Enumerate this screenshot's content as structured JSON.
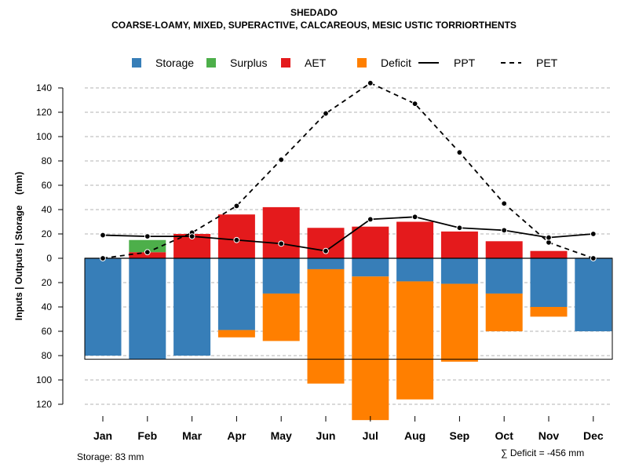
{
  "chart_data": {
    "type": "bar",
    "title": "SHEDADO",
    "subtitle": "COARSE-LOAMY, MIXED, SUPERACTIVE, CALCAREOUS, MESIC USTIC TORRIORTHENTS",
    "ylabel": "Inputs | Outputs | Storage    (mm)",
    "categories": [
      "Jan",
      "Feb",
      "Mar",
      "Apr",
      "May",
      "Jun",
      "Jul",
      "Aug",
      "Sep",
      "Oct",
      "Nov",
      "Dec"
    ],
    "ylim": [
      -120,
      140
    ],
    "yticks": [
      140,
      120,
      100,
      80,
      60,
      40,
      20,
      0,
      -20,
      -40,
      -60,
      -80,
      -100,
      -120
    ],
    "ytick_labels": [
      "140",
      "120",
      "100",
      "80",
      "60",
      "40",
      "20",
      "0",
      "20",
      "40",
      "60",
      "80",
      "100",
      "120"
    ],
    "grid": true,
    "capacity_line": -83,
    "legend": [
      {
        "label": "Storage",
        "kind": "box",
        "color": "#377EB8"
      },
      {
        "label": "Surplus",
        "kind": "box",
        "color": "#4DAF4A"
      },
      {
        "label": "AET",
        "kind": "box",
        "color": "#E41A1C"
      },
      {
        "label": "Deficit",
        "kind": "box",
        "color": "#FF7F00"
      },
      {
        "label": "PPT",
        "kind": "solid",
        "color": "#000000"
      },
      {
        "label": "PET",
        "kind": "dashed",
        "color": "#000000"
      }
    ],
    "series": [
      {
        "name": "AET",
        "color": "#E41A1C",
        "values": [
          0,
          5,
          20,
          36,
          42,
          25,
          26,
          30,
          22,
          14,
          6,
          0
        ]
      },
      {
        "name": "Surplus",
        "color": "#4DAF4A",
        "values": [
          0,
          10,
          0,
          0,
          0,
          0,
          0,
          0,
          0,
          0,
          0,
          0
        ]
      },
      {
        "name": "Storage",
        "color": "#377EB8",
        "values": [
          80,
          83,
          80,
          59,
          29,
          9,
          15,
          19,
          21,
          29,
          40,
          60
        ]
      },
      {
        "name": "Deficit",
        "color": "#FF7F00",
        "values": [
          0,
          0,
          0,
          6,
          39,
          94,
          118,
          97,
          64,
          31,
          8,
          0
        ]
      },
      {
        "name": "PPT",
        "color": "#000000",
        "values": [
          19,
          18,
          18,
          15,
          12,
          6,
          32,
          34,
          25,
          23,
          17,
          20
        ]
      },
      {
        "name": "PET",
        "color": "#000000",
        "values": [
          0,
          5,
          21,
          43,
          81,
          119,
          144,
          127,
          87,
          45,
          13,
          0
        ]
      }
    ]
  },
  "footer": {
    "storage": "Storage: 83 mm",
    "deficit": "∑ Deficit = -456 mm"
  }
}
